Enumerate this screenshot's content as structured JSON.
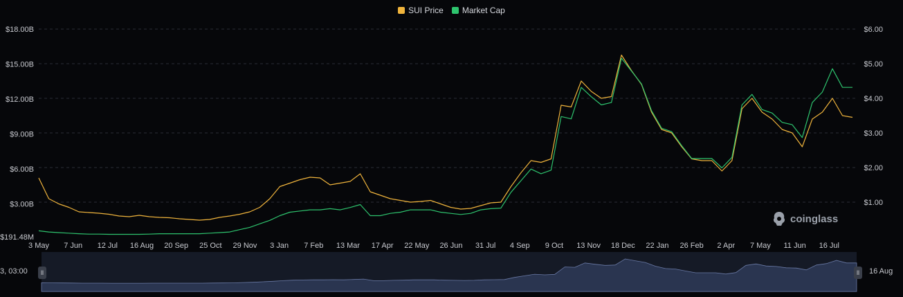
{
  "legend": [
    {
      "label": "SUI Price",
      "color": "#f0b43c"
    },
    {
      "label": "Market Cap",
      "color": "#2ec46e"
    }
  ],
  "watermark": {
    "text": "coinglass",
    "icon": "coinglass-logo-icon"
  },
  "navigator": {
    "left_label": "3, 03:00",
    "right_label": "16 Aug"
  },
  "chart_data": {
    "type": "line",
    "title": "",
    "x_ticks": [
      "3 May",
      "7 Jun",
      "12 Jul",
      "16 Aug",
      "20 Sep",
      "25 Oct",
      "29 Nov",
      "3 Jan",
      "7 Feb",
      "13 Mar",
      "17 Apr",
      "22 May",
      "26 Jun",
      "31 Jul",
      "4 Sep",
      "9 Oct",
      "13 Nov",
      "18 Dec",
      "22 Jan",
      "26 Feb",
      "2 Apr",
      "7 May",
      "11 Jun",
      "16 Jul"
    ],
    "y_left_ticks": [
      "$191.48M",
      "$3.00B",
      "$6.00B",
      "$9.00B",
      "$12.00B",
      "$15.00B",
      "$18.00B"
    ],
    "y_right_ticks": [
      "$1.00",
      "$2.00",
      "$3.00",
      "$4.00",
      "$5.00",
      "$6.00"
    ],
    "y_left_range": [
      0.19148,
      18
    ],
    "y_right_range": [
      0,
      6
    ],
    "grid": true,
    "legend_position": "top-center",
    "series": [
      {
        "name": "SUI Price",
        "axis": "right",
        "color": "#f0b43c",
        "values": [
          1.7,
          1.1,
          0.95,
          0.85,
          0.72,
          0.7,
          0.68,
          0.65,
          0.6,
          0.58,
          0.62,
          0.58,
          0.56,
          0.55,
          0.52,
          0.5,
          0.48,
          0.5,
          0.56,
          0.6,
          0.65,
          0.72,
          0.85,
          1.1,
          1.45,
          1.55,
          1.65,
          1.72,
          1.7,
          1.5,
          1.55,
          1.6,
          1.82,
          1.3,
          1.2,
          1.1,
          1.05,
          1.0,
          1.02,
          1.05,
          0.95,
          0.85,
          0.8,
          0.82,
          0.9,
          0.98,
          1.0,
          1.45,
          1.85,
          2.2,
          2.15,
          2.25,
          3.8,
          3.75,
          4.5,
          4.2,
          4.0,
          4.05,
          5.25,
          4.8,
          4.4,
          3.6,
          3.1,
          3.0,
          2.6,
          2.25,
          2.2,
          2.2,
          1.9,
          2.2,
          3.7,
          4.0,
          3.6,
          3.4,
          3.1,
          3.0,
          2.6,
          3.4,
          3.6,
          4.0,
          3.5,
          3.45
        ]
      },
      {
        "name": "Market Cap",
        "axis": "left",
        "color": "#2ec46e",
        "values": [
          0.7,
          0.6,
          0.55,
          0.5,
          0.45,
          0.42,
          0.42,
          0.4,
          0.4,
          0.4,
          0.4,
          0.42,
          0.45,
          0.45,
          0.45,
          0.45,
          0.45,
          0.5,
          0.55,
          0.6,
          0.8,
          1.0,
          1.3,
          1.6,
          2.0,
          2.3,
          2.4,
          2.5,
          2.5,
          2.6,
          2.5,
          2.7,
          2.95,
          2.0,
          2.0,
          2.2,
          2.3,
          2.5,
          2.5,
          2.5,
          2.3,
          2.2,
          2.1,
          2.2,
          2.5,
          2.6,
          2.65,
          4.0,
          5.0,
          6.0,
          5.6,
          5.9,
          10.5,
          10.3,
          13.0,
          12.2,
          11.5,
          11.7,
          15.5,
          14.4,
          13.3,
          11.0,
          9.5,
          9.2,
          8.0,
          6.9,
          6.9,
          6.9,
          6.1,
          7.0,
          11.5,
          12.4,
          11.1,
          10.8,
          10.0,
          9.8,
          8.7,
          11.7,
          12.6,
          14.6,
          13.0,
          13.0
        ]
      }
    ]
  }
}
